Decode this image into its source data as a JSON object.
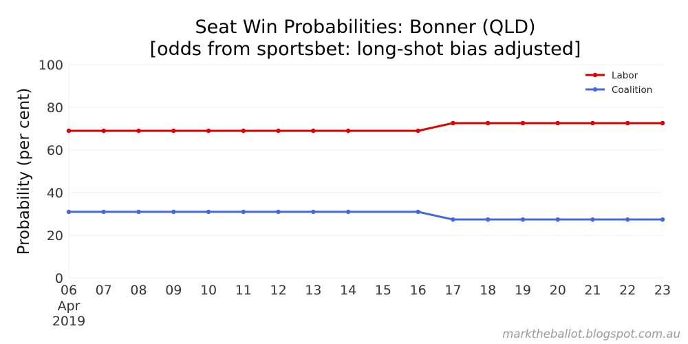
{
  "chart_data": {
    "type": "line",
    "title": "Seat Win Probabilities: Bonner (QLD)",
    "subtitle": "[odds from sportsbet: long-shot bias adjusted]",
    "ylabel": "Probability (per cent)",
    "xlabel": "",
    "ylim": [
      0,
      100
    ],
    "yticks": [
      "0",
      "20",
      "40",
      "60",
      "80",
      "100"
    ],
    "x": [
      "2019-04-06",
      "2019-04-07",
      "2019-04-08",
      "2019-04-09",
      "2019-04-10",
      "2019-04-11",
      "2019-04-12",
      "2019-04-13",
      "2019-04-14",
      "2019-04-16",
      "2019-04-17",
      "2019-04-18",
      "2019-04-19",
      "2019-04-20",
      "2019-04-21",
      "2019-04-22",
      "2019-04-23"
    ],
    "xticks": [
      {
        "date": "2019-04-06",
        "label": "06",
        "sub1": "Apr",
        "sub2": "2019"
      },
      {
        "date": "2019-04-07",
        "label": "07"
      },
      {
        "date": "2019-04-08",
        "label": "08"
      },
      {
        "date": "2019-04-09",
        "label": "09"
      },
      {
        "date": "2019-04-10",
        "label": "10"
      },
      {
        "date": "2019-04-11",
        "label": "11"
      },
      {
        "date": "2019-04-12",
        "label": "12"
      },
      {
        "date": "2019-04-13",
        "label": "13"
      },
      {
        "date": "2019-04-14",
        "label": "14"
      },
      {
        "date": "2019-04-15",
        "label": "15"
      },
      {
        "date": "2019-04-16",
        "label": "16"
      },
      {
        "date": "2019-04-17",
        "label": "17"
      },
      {
        "date": "2019-04-18",
        "label": "18"
      },
      {
        "date": "2019-04-19",
        "label": "19"
      },
      {
        "date": "2019-04-20",
        "label": "20"
      },
      {
        "date": "2019-04-21",
        "label": "21"
      },
      {
        "date": "2019-04-22",
        "label": "22"
      },
      {
        "date": "2019-04-23",
        "label": "23"
      }
    ],
    "series": [
      {
        "name": "Labor",
        "color": "#dd0000",
        "values": [
          69,
          69,
          69,
          69,
          69,
          69,
          69,
          69,
          69,
          69,
          72.6,
          72.6,
          72.6,
          72.6,
          72.6,
          72.6,
          72.6
        ]
      },
      {
        "name": "Coalition",
        "color": "#4169e1",
        "values": [
          31,
          31,
          31,
          31,
          31,
          31,
          31,
          31,
          31,
          31,
          27.4,
          27.4,
          27.4,
          27.4,
          27.4,
          27.4,
          27.4
        ]
      }
    ],
    "grid": true,
    "legend": "top-right"
  },
  "watermark": "marktheballot.blogspot.com.au"
}
